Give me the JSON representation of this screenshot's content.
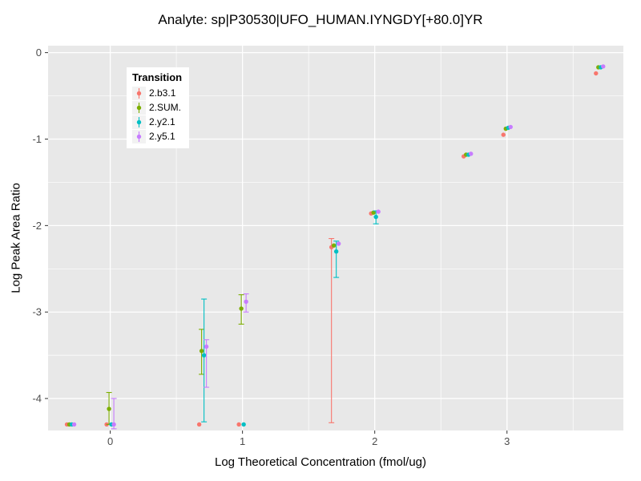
{
  "chart_data": {
    "type": "scatter",
    "title": "Analyte: sp|P30530|UFO_HUMAN.IYNGDY[+80.0]YR",
    "xlabel": "Log Theoretical Concentration (fmol/ug)",
    "ylabel": "Log Peak Area Ratio",
    "legend_title": "Transition",
    "legend_position": "inside-top-left",
    "panel_bg": "#e8e8e8",
    "grid_color": "#ffffff",
    "tick_label_color": "#4d4d4d",
    "xlim": [
      -0.47,
      3.88
    ],
    "ylim": [
      -4.37,
      0.08
    ],
    "xticks": [
      0,
      1,
      2,
      3
    ],
    "yticks": [
      0,
      -1,
      -2,
      -3,
      -4
    ],
    "x_minor": [
      0.5,
      1.5,
      2.5,
      3.5
    ],
    "y_minor": [
      -0.5,
      -1.5,
      -2.5,
      -3.5
    ],
    "grid": true,
    "series": [
      {
        "name": "2.b3.1",
        "color": "#F8766D",
        "points": [
          {
            "x": -0.3,
            "y": -4.3
          },
          {
            "x": 0.0,
            "y": -4.3
          },
          {
            "x": 0.7,
            "y": -4.3
          },
          {
            "x": 1.0,
            "y": -4.3
          },
          {
            "x": 1.7,
            "y": -2.25,
            "ymin": -4.28,
            "ymax": -2.15
          },
          {
            "x": 2.0,
            "y": -1.86
          },
          {
            "x": 2.7,
            "y": -1.2
          },
          {
            "x": 3.0,
            "y": -0.95
          },
          {
            "x": 3.7,
            "y": -0.24
          }
        ]
      },
      {
        "name": "2.SUM.",
        "color": "#7CAE00",
        "points": [
          {
            "x": -0.3,
            "y": -4.3
          },
          {
            "x": 0.0,
            "y": -4.12,
            "ymin": -4.3,
            "ymax": -3.93
          },
          {
            "x": 0.7,
            "y": -3.45,
            "ymin": -3.72,
            "ymax": -3.2
          },
          {
            "x": 1.0,
            "y": -2.96,
            "ymin": -3.14,
            "ymax": -2.8
          },
          {
            "x": 1.7,
            "y": -2.23
          },
          {
            "x": 2.0,
            "y": -1.85
          },
          {
            "x": 2.7,
            "y": -1.18
          },
          {
            "x": 3.0,
            "y": -0.88
          },
          {
            "x": 3.7,
            "y": -0.17
          }
        ]
      },
      {
        "name": "2.y2.1",
        "color": "#00BFC4",
        "points": [
          {
            "x": -0.3,
            "y": -4.3
          },
          {
            "x": 0.0,
            "y": -4.3
          },
          {
            "x": 0.7,
            "y": -3.5,
            "ymin": -4.27,
            "ymax": -2.85
          },
          {
            "x": 1.0,
            "y": -4.3
          },
          {
            "x": 1.7,
            "y": -2.3,
            "ymin": -2.6,
            "ymax": -2.18
          },
          {
            "x": 2.0,
            "y": -1.9,
            "ymin": -1.98,
            "ymax": -1.83
          },
          {
            "x": 2.7,
            "y": -1.18
          },
          {
            "x": 3.0,
            "y": -0.87
          },
          {
            "x": 3.7,
            "y": -0.17
          }
        ]
      },
      {
        "name": "2.y5.1",
        "color": "#C77CFF",
        "points": [
          {
            "x": -0.3,
            "y": -4.3
          },
          {
            "x": 0.0,
            "y": -4.3,
            "ymin": -4.35,
            "ymax": -4.0
          },
          {
            "x": 0.7,
            "y": -3.4,
            "ymin": -3.87,
            "ymax": -3.32
          },
          {
            "x": 1.0,
            "y": -2.88,
            "ymin": -3.0,
            "ymax": -2.79
          },
          {
            "x": 1.7,
            "y": -2.21
          },
          {
            "x": 2.0,
            "y": -1.84
          },
          {
            "x": 2.7,
            "y": -1.17
          },
          {
            "x": 3.0,
            "y": -0.86
          },
          {
            "x": 3.7,
            "y": -0.16
          }
        ]
      }
    ]
  }
}
